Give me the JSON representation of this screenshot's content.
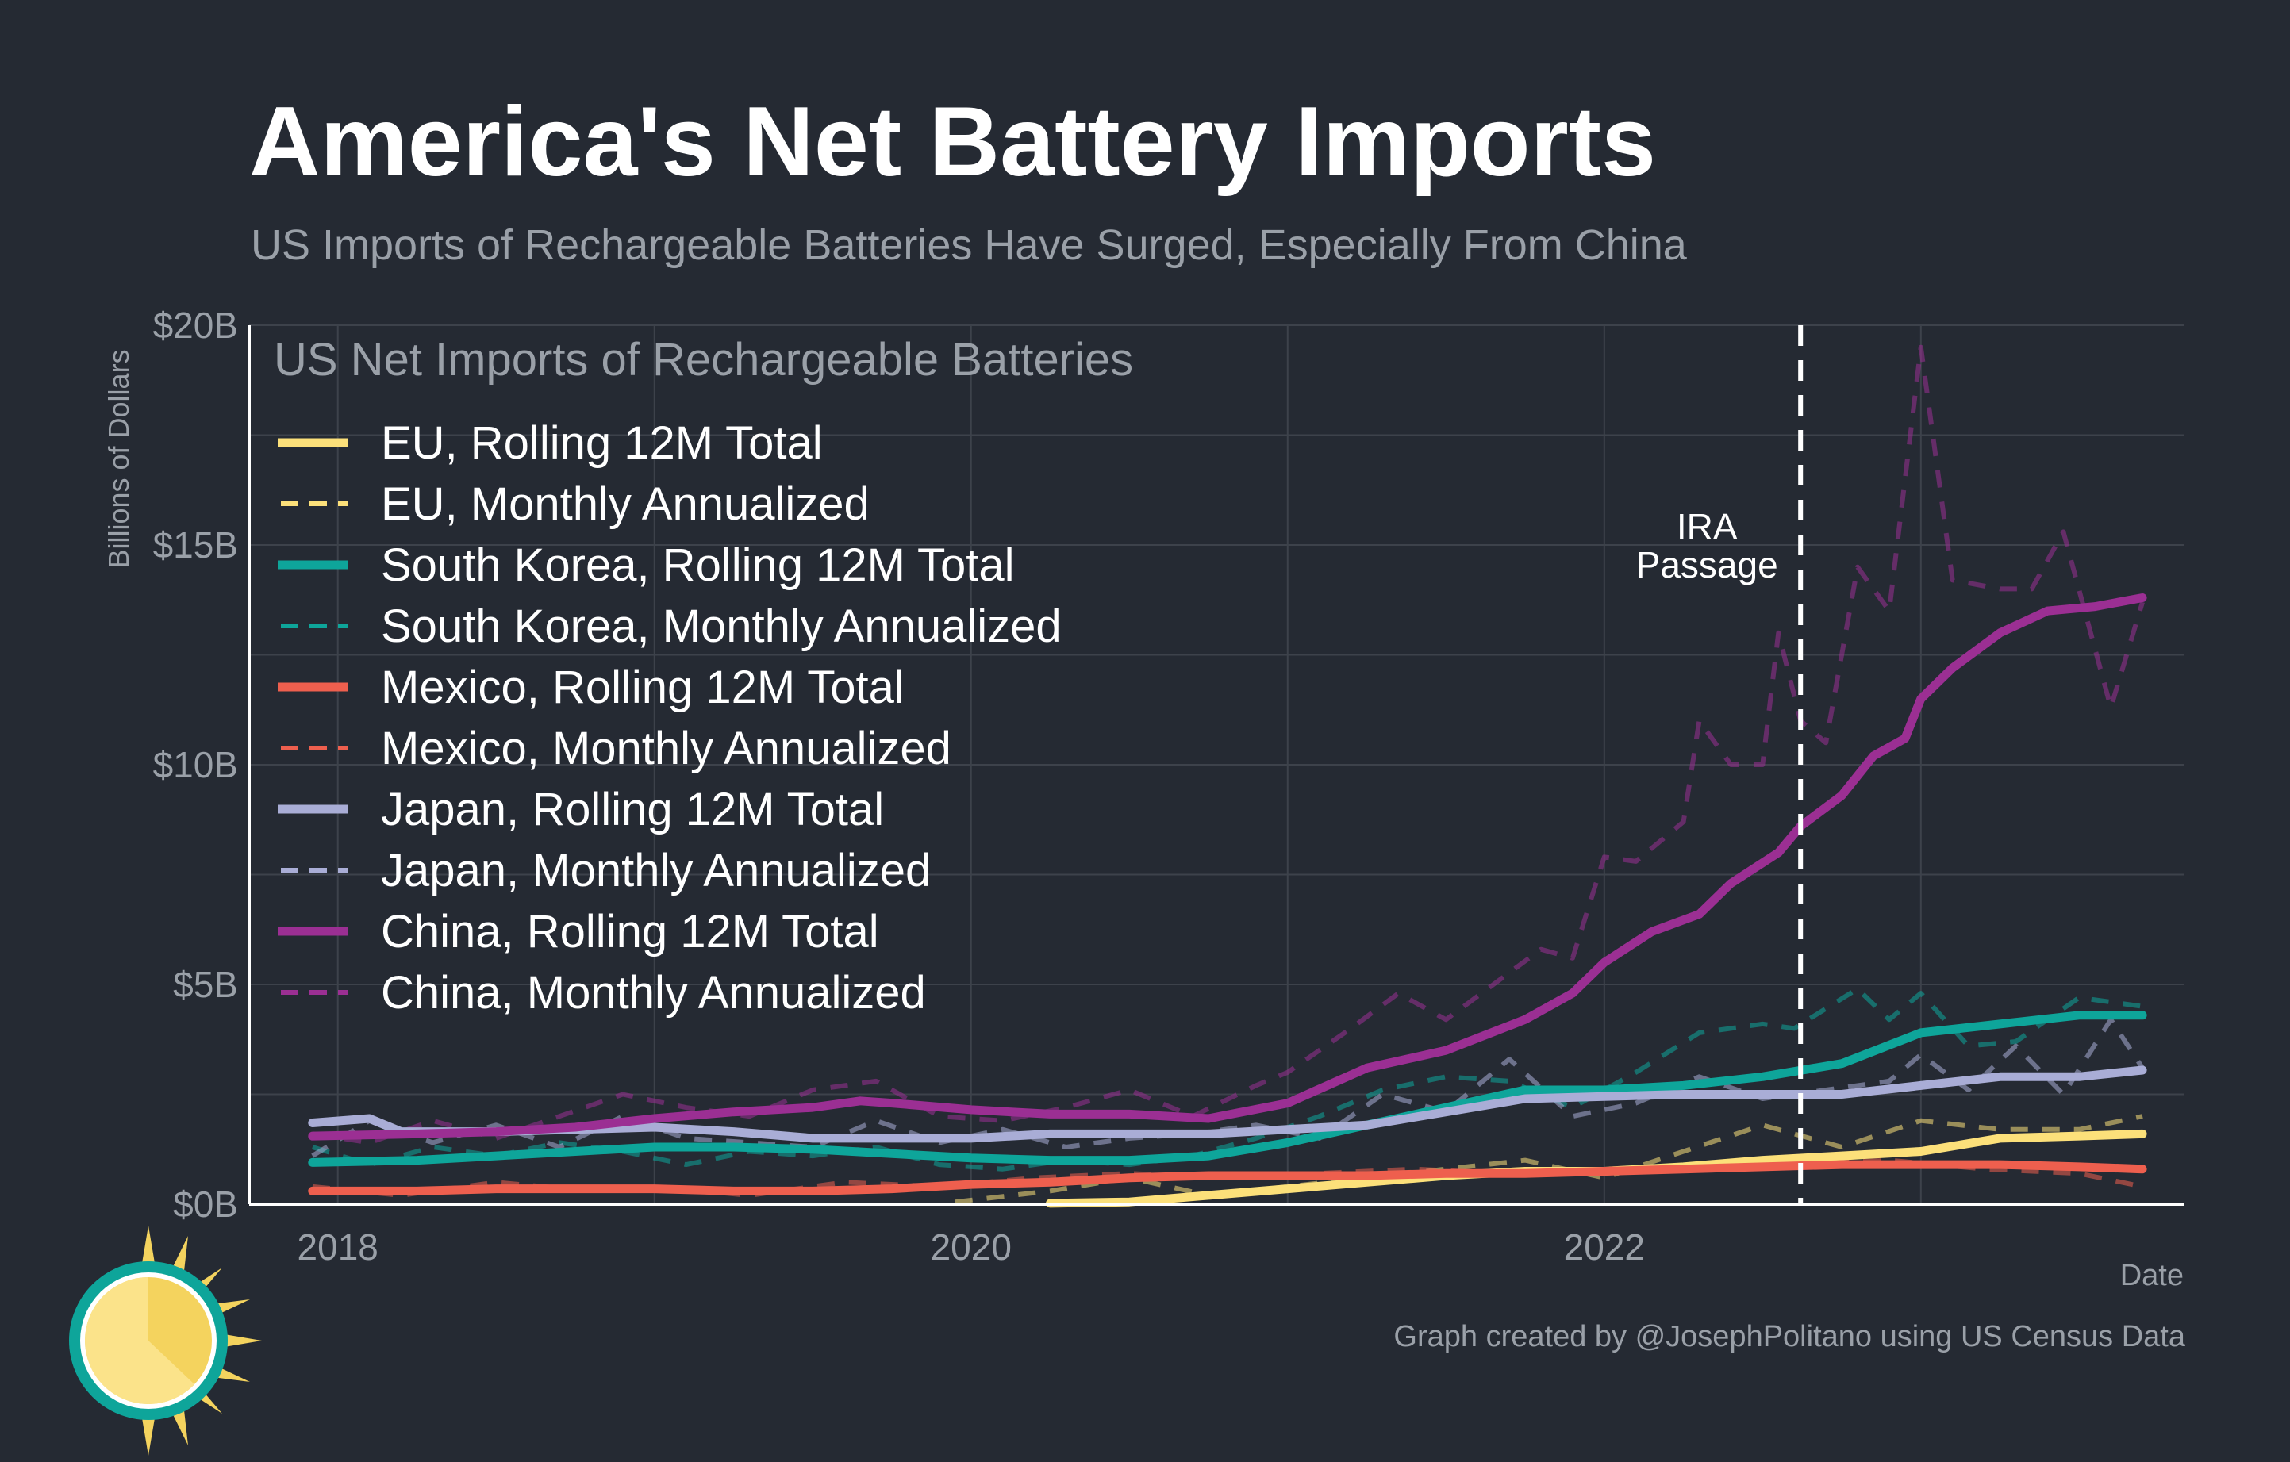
{
  "header": {
    "title": "America's Net Battery Imports",
    "subtitle": "US Imports of Rechargeable Batteries Have Surged, Especially From China"
  },
  "legend_title": "US Net Imports of Rechargeable Batteries",
  "caption": "Graph created by @JosephPolitano using US Census Data",
  "colors": {
    "background": "#252a33",
    "grid": "#3d424b",
    "eu": "#fce07a",
    "south_korea": "#0ea59a",
    "mexico": "#ee5f4e",
    "japan": "#a9add6",
    "china": "#9b2f93"
  },
  "chart_data": {
    "type": "line",
    "xlabel": "Date",
    "ylabel": "Billions of Dollars",
    "xlim": [
      2017.72,
      2023.83
    ],
    "ylim": [
      0,
      20
    ],
    "x_ticks": [
      2018,
      2020,
      2022
    ],
    "x_tick_labels": [
      "2018",
      "2020",
      "2022"
    ],
    "y_ticks": [
      0,
      5,
      10,
      15,
      20
    ],
    "y_tick_labels": [
      "$0B",
      "$5B",
      "$10B",
      "$15B",
      "$20B"
    ],
    "grid": true,
    "legend_position": "top-left",
    "annotations": [
      {
        "x": 2022.62,
        "label_line1": "IRA",
        "label_line2": "Passage"
      }
    ],
    "series": [
      {
        "name": "EU, Rolling 12M Total",
        "color": "#fce07a",
        "dash": false,
        "points": [
          [
            2020.25,
            0.02
          ],
          [
            2020.5,
            0.05
          ],
          [
            2020.75,
            0.2
          ],
          [
            2021.0,
            0.35
          ],
          [
            2021.25,
            0.5
          ],
          [
            2021.5,
            0.65
          ],
          [
            2021.75,
            0.75
          ],
          [
            2022.0,
            0.75
          ],
          [
            2022.25,
            0.85
          ],
          [
            2022.5,
            1.0
          ],
          [
            2022.75,
            1.1
          ],
          [
            2023.0,
            1.2
          ],
          [
            2023.25,
            1.5
          ],
          [
            2023.5,
            1.55
          ],
          [
            2023.7,
            1.6
          ]
        ]
      },
      {
        "name": "EU, Monthly Annualized",
        "color": "#fce07a",
        "dash": true,
        "points": [
          [
            2019.95,
            0.05
          ],
          [
            2020.25,
            0.3
          ],
          [
            2020.5,
            0.6
          ],
          [
            2020.75,
            0.2
          ],
          [
            2021.0,
            0.4
          ],
          [
            2021.25,
            0.6
          ],
          [
            2021.5,
            0.8
          ],
          [
            2021.75,
            1.0
          ],
          [
            2022.0,
            0.6
          ],
          [
            2022.25,
            1.2
          ],
          [
            2022.5,
            1.8
          ],
          [
            2022.75,
            1.3
          ],
          [
            2023.0,
            1.9
          ],
          [
            2023.25,
            1.7
          ],
          [
            2023.5,
            1.7
          ],
          [
            2023.7,
            2.0
          ]
        ]
      },
      {
        "name": "South Korea, Rolling 12M Total",
        "color": "#0ea59a",
        "dash": false,
        "points": [
          [
            2017.92,
            0.95
          ],
          [
            2018.25,
            1.0
          ],
          [
            2018.5,
            1.1
          ],
          [
            2018.75,
            1.2
          ],
          [
            2019.0,
            1.3
          ],
          [
            2019.25,
            1.3
          ],
          [
            2019.5,
            1.25
          ],
          [
            2019.75,
            1.15
          ],
          [
            2020.0,
            1.05
          ],
          [
            2020.25,
            1.0
          ],
          [
            2020.5,
            1.0
          ],
          [
            2020.75,
            1.1
          ],
          [
            2021.0,
            1.4
          ],
          [
            2021.25,
            1.8
          ],
          [
            2021.5,
            2.2
          ],
          [
            2021.75,
            2.6
          ],
          [
            2022.0,
            2.6
          ],
          [
            2022.25,
            2.7
          ],
          [
            2022.5,
            2.9
          ],
          [
            2022.75,
            3.2
          ],
          [
            2023.0,
            3.9
          ],
          [
            2023.25,
            4.1
          ],
          [
            2023.5,
            4.3
          ],
          [
            2023.7,
            4.3
          ]
        ]
      },
      {
        "name": "South Korea, Monthly Annualized",
        "color": "#0ea59a",
        "dash": true,
        "points": [
          [
            2017.92,
            1.3
          ],
          [
            2018.1,
            0.9
          ],
          [
            2018.3,
            1.3
          ],
          [
            2018.5,
            1.1
          ],
          [
            2018.7,
            1.4
          ],
          [
            2018.9,
            1.2
          ],
          [
            2019.1,
            0.9
          ],
          [
            2019.3,
            1.2
          ],
          [
            2019.5,
            1.1
          ],
          [
            2019.7,
            1.3
          ],
          [
            2019.9,
            0.9
          ],
          [
            2020.1,
            0.8
          ],
          [
            2020.3,
            1.0
          ],
          [
            2020.5,
            0.9
          ],
          [
            2020.7,
            1.1
          ],
          [
            2020.9,
            1.5
          ],
          [
            2021.1,
            2.0
          ],
          [
            2021.3,
            2.6
          ],
          [
            2021.5,
            2.9
          ],
          [
            2021.7,
            2.8
          ],
          [
            2021.9,
            2.2
          ],
          [
            2022.1,
            3.0
          ],
          [
            2022.3,
            3.9
          ],
          [
            2022.5,
            4.1
          ],
          [
            2022.6,
            4.0
          ],
          [
            2022.8,
            4.9
          ],
          [
            2022.9,
            4.2
          ],
          [
            2023.0,
            4.8
          ],
          [
            2023.15,
            3.6
          ],
          [
            2023.3,
            3.7
          ],
          [
            2023.5,
            4.7
          ],
          [
            2023.7,
            4.5
          ]
        ]
      },
      {
        "name": "Mexico, Rolling 12M Total",
        "color": "#ee5f4e",
        "dash": false,
        "points": [
          [
            2017.92,
            0.3
          ],
          [
            2018.25,
            0.3
          ],
          [
            2018.5,
            0.35
          ],
          [
            2018.75,
            0.35
          ],
          [
            2019.0,
            0.35
          ],
          [
            2019.25,
            0.3
          ],
          [
            2019.5,
            0.3
          ],
          [
            2019.75,
            0.35
          ],
          [
            2020.0,
            0.45
          ],
          [
            2020.25,
            0.5
          ],
          [
            2020.5,
            0.6
          ],
          [
            2020.75,
            0.65
          ],
          [
            2021.0,
            0.65
          ],
          [
            2021.25,
            0.65
          ],
          [
            2021.5,
            0.7
          ],
          [
            2021.75,
            0.7
          ],
          [
            2022.0,
            0.75
          ],
          [
            2022.25,
            0.8
          ],
          [
            2022.5,
            0.85
          ],
          [
            2022.75,
            0.9
          ],
          [
            2023.0,
            0.9
          ],
          [
            2023.25,
            0.9
          ],
          [
            2023.5,
            0.85
          ],
          [
            2023.7,
            0.8
          ]
        ]
      },
      {
        "name": "Mexico, Monthly Annualized",
        "color": "#ee5f4e",
        "dash": true,
        "points": [
          [
            2017.92,
            0.4
          ],
          [
            2018.2,
            0.2
          ],
          [
            2018.5,
            0.5
          ],
          [
            2018.8,
            0.3
          ],
          [
            2019.0,
            0.4
          ],
          [
            2019.3,
            0.2
          ],
          [
            2019.6,
            0.5
          ],
          [
            2019.9,
            0.4
          ],
          [
            2020.2,
            0.6
          ],
          [
            2020.5,
            0.7
          ],
          [
            2020.8,
            0.6
          ],
          [
            2021.1,
            0.7
          ],
          [
            2021.4,
            0.8
          ],
          [
            2021.7,
            0.7
          ],
          [
            2022.0,
            0.8
          ],
          [
            2022.3,
            0.9
          ],
          [
            2022.6,
            0.9
          ],
          [
            2022.9,
            1.0
          ],
          [
            2023.2,
            0.8
          ],
          [
            2023.5,
            0.7
          ],
          [
            2023.7,
            0.4
          ]
        ]
      },
      {
        "name": "Japan, Rolling 12M Total",
        "color": "#a9add6",
        "dash": false,
        "points": [
          [
            2017.92,
            1.85
          ],
          [
            2018.1,
            1.95
          ],
          [
            2018.2,
            1.65
          ],
          [
            2018.5,
            1.65
          ],
          [
            2018.75,
            1.7
          ],
          [
            2019.0,
            1.75
          ],
          [
            2019.25,
            1.65
          ],
          [
            2019.5,
            1.5
          ],
          [
            2019.75,
            1.5
          ],
          [
            2020.0,
            1.5
          ],
          [
            2020.25,
            1.6
          ],
          [
            2020.5,
            1.6
          ],
          [
            2020.75,
            1.6
          ],
          [
            2021.0,
            1.7
          ],
          [
            2021.25,
            1.8
          ],
          [
            2021.5,
            2.1
          ],
          [
            2021.75,
            2.4
          ],
          [
            2022.0,
            2.45
          ],
          [
            2022.25,
            2.5
          ],
          [
            2022.5,
            2.5
          ],
          [
            2022.75,
            2.5
          ],
          [
            2023.0,
            2.7
          ],
          [
            2023.25,
            2.9
          ],
          [
            2023.5,
            2.9
          ],
          [
            2023.7,
            3.05
          ]
        ]
      },
      {
        "name": "Japan, Monthly Annualized",
        "color": "#a9add6",
        "dash": true,
        "points": [
          [
            2017.92,
            1.1
          ],
          [
            2018.1,
            1.9
          ],
          [
            2018.3,
            1.4
          ],
          [
            2018.5,
            1.8
          ],
          [
            2018.7,
            1.3
          ],
          [
            2018.9,
            2.0
          ],
          [
            2019.1,
            1.5
          ],
          [
            2019.3,
            1.4
          ],
          [
            2019.5,
            1.3
          ],
          [
            2019.7,
            1.9
          ],
          [
            2019.9,
            1.4
          ],
          [
            2020.1,
            1.7
          ],
          [
            2020.3,
            1.3
          ],
          [
            2020.5,
            1.5
          ],
          [
            2020.7,
            1.6
          ],
          [
            2020.9,
            1.8
          ],
          [
            2021.1,
            1.5
          ],
          [
            2021.3,
            2.5
          ],
          [
            2021.5,
            2.1
          ],
          [
            2021.7,
            3.3
          ],
          [
            2021.9,
            2.0
          ],
          [
            2022.1,
            2.3
          ],
          [
            2022.3,
            2.9
          ],
          [
            2022.5,
            2.4
          ],
          [
            2022.7,
            2.6
          ],
          [
            2022.9,
            2.8
          ],
          [
            2023.0,
            3.4
          ],
          [
            2023.15,
            2.6
          ],
          [
            2023.3,
            3.6
          ],
          [
            2023.45,
            2.5
          ],
          [
            2023.6,
            4.2
          ],
          [
            2023.7,
            3.1
          ]
        ]
      },
      {
        "name": "China, Rolling 12M Total",
        "color": "#9b2f93",
        "dash": false,
        "points": [
          [
            2017.92,
            1.55
          ],
          [
            2018.25,
            1.6
          ],
          [
            2018.5,
            1.65
          ],
          [
            2018.75,
            1.75
          ],
          [
            2019.0,
            1.95
          ],
          [
            2019.25,
            2.1
          ],
          [
            2019.5,
            2.2
          ],
          [
            2019.65,
            2.35
          ],
          [
            2019.75,
            2.3
          ],
          [
            2020.0,
            2.15
          ],
          [
            2020.25,
            2.05
          ],
          [
            2020.5,
            2.05
          ],
          [
            2020.75,
            1.95
          ],
          [
            2021.0,
            2.3
          ],
          [
            2021.25,
            3.1
          ],
          [
            2021.5,
            3.5
          ],
          [
            2021.75,
            4.2
          ],
          [
            2021.9,
            4.8
          ],
          [
            2022.0,
            5.5
          ],
          [
            2022.15,
            6.2
          ],
          [
            2022.3,
            6.6
          ],
          [
            2022.4,
            7.3
          ],
          [
            2022.55,
            8.0
          ],
          [
            2022.62,
            8.6
          ],
          [
            2022.75,
            9.3
          ],
          [
            2022.85,
            10.2
          ],
          [
            2022.95,
            10.6
          ],
          [
            2023.0,
            11.5
          ],
          [
            2023.1,
            12.2
          ],
          [
            2023.25,
            13.0
          ],
          [
            2023.4,
            13.5
          ],
          [
            2023.55,
            13.6
          ],
          [
            2023.7,
            13.8
          ]
        ]
      },
      {
        "name": "China, Monthly Annualized",
        "color": "#9b2f93",
        "dash": true,
        "points": [
          [
            2017.92,
            1.6
          ],
          [
            2018.1,
            1.4
          ],
          [
            2018.3,
            1.9
          ],
          [
            2018.5,
            1.5
          ],
          [
            2018.7,
            2.0
          ],
          [
            2018.9,
            2.5
          ],
          [
            2019.1,
            2.2
          ],
          [
            2019.3,
            2.0
          ],
          [
            2019.5,
            2.6
          ],
          [
            2019.7,
            2.8
          ],
          [
            2019.9,
            2.0
          ],
          [
            2020.1,
            1.9
          ],
          [
            2020.3,
            2.2
          ],
          [
            2020.5,
            2.6
          ],
          [
            2020.7,
            2.0
          ],
          [
            2020.9,
            2.7
          ],
          [
            2021.0,
            3.0
          ],
          [
            2021.2,
            4.0
          ],
          [
            2021.35,
            4.8
          ],
          [
            2021.5,
            4.2
          ],
          [
            2021.65,
            5.0
          ],
          [
            2021.8,
            5.8
          ],
          [
            2021.9,
            5.6
          ],
          [
            2022.0,
            7.9
          ],
          [
            2022.1,
            7.8
          ],
          [
            2022.25,
            8.7
          ],
          [
            2022.3,
            11.0
          ],
          [
            2022.4,
            10.0
          ],
          [
            2022.5,
            10.0
          ],
          [
            2022.55,
            13.0
          ],
          [
            2022.62,
            11.0
          ],
          [
            2022.7,
            10.5
          ],
          [
            2022.8,
            14.5
          ],
          [
            2022.9,
            13.5
          ],
          [
            2023.0,
            19.5
          ],
          [
            2023.1,
            14.2
          ],
          [
            2023.25,
            14.0
          ],
          [
            2023.35,
            14.0
          ],
          [
            2023.45,
            15.3
          ],
          [
            2023.6,
            11.3
          ],
          [
            2023.7,
            13.7
          ]
        ]
      }
    ]
  },
  "legend": [
    {
      "label": "EU, Rolling 12M Total",
      "color": "#fce07a",
      "dash": false
    },
    {
      "label": "EU, Monthly Annualized",
      "color": "#fce07a",
      "dash": true
    },
    {
      "label": "South Korea, Rolling 12M Total",
      "color": "#0ea59a",
      "dash": false
    },
    {
      "label": "South Korea, Monthly Annualized",
      "color": "#0ea59a",
      "dash": true
    },
    {
      "label": "Mexico, Rolling 12M Total",
      "color": "#ee5f4e",
      "dash": false
    },
    {
      "label": "Mexico, Monthly Annualized",
      "color": "#ee5f4e",
      "dash": true
    },
    {
      "label": "Japan, Rolling 12M Total",
      "color": "#a9add6",
      "dash": false
    },
    {
      "label": "Japan, Monthly Annualized",
      "color": "#a9add6",
      "dash": true
    },
    {
      "label": "China, Rolling 12M Total",
      "color": "#9b2f93",
      "dash": false
    },
    {
      "label": "China, Monthly Annualized",
      "color": "#9b2f93",
      "dash": true
    }
  ]
}
